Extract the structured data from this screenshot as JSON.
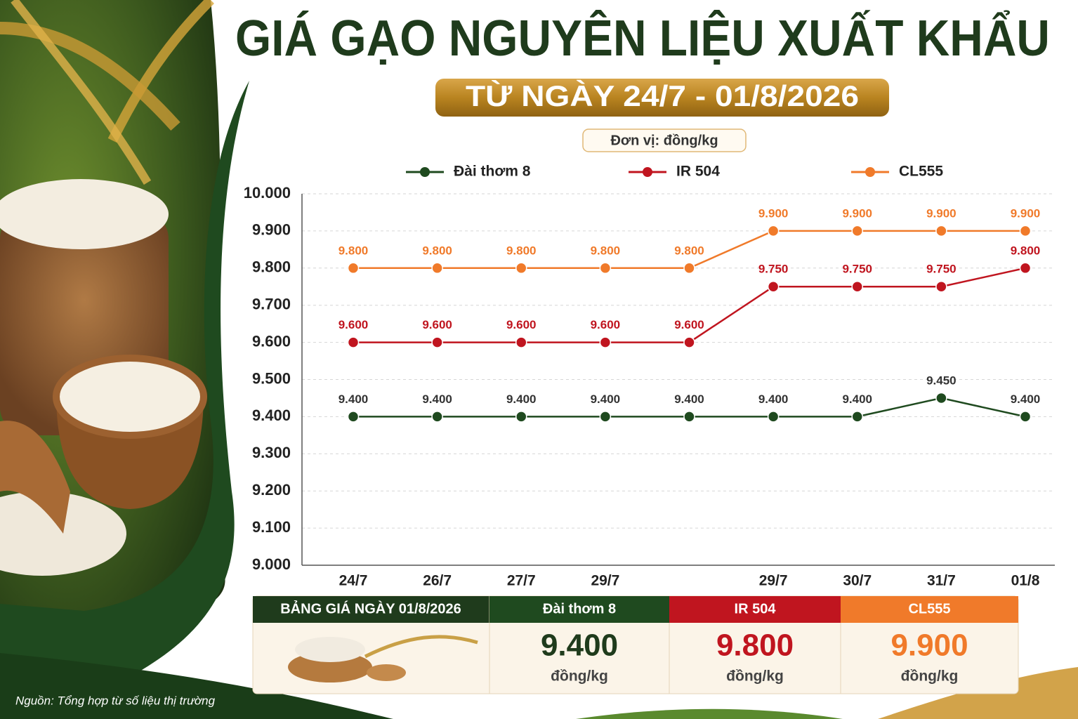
{
  "title": "GIÁ GẠO NGUYÊN LIỆU XUẤT KHẨU",
  "subtitle": "TỪ NGÀY 24/7 - 01/8/2026",
  "unit_note": "Đơn vị: đồng/kg",
  "chart_data": {
    "type": "line",
    "categories": [
      "24/7",
      "26/7",
      "27/7",
      "29/7",
      null,
      "29/7",
      "30/7",
      "31/7",
      "01/8"
    ],
    "series": [
      {
        "name": "Đài thơm 8",
        "color": "#1f4a1f",
        "values": [
          9400,
          9400,
          9400,
          9400,
          9400,
          9400,
          9400,
          9450,
          9400
        ],
        "value_labels": [
          "9.400",
          "9.400",
          "9.400",
          "9.400",
          "9.400",
          "9.400",
          "9.400",
          "9.450",
          "9.400"
        ]
      },
      {
        "name": "IR 504",
        "color": "#c0151f",
        "values": [
          9600,
          9600,
          9600,
          9600,
          9600,
          9750,
          9750,
          9750,
          9800
        ],
        "value_labels": [
          "9.600",
          "9.600",
          "9.600",
          "9.600",
          "9.600",
          "9.750",
          "9.750",
          "9.750",
          "9.800"
        ]
      },
      {
        "name": "CL555",
        "color": "#f07a2a",
        "values": [
          9800,
          9800,
          9800,
          9800,
          9800,
          9900,
          9900,
          9900,
          9900
        ],
        "value_labels": [
          "9.800",
          "9.800",
          "9.800",
          "9.800",
          "9.800",
          "9.900",
          "9.900",
          "9.900",
          "9.900"
        ]
      }
    ],
    "ylim": [
      9000,
      10000
    ],
    "yticks": [
      {
        "value": 9000,
        "label": "9.000"
      },
      {
        "value": 9100,
        "label": "9.100"
      },
      {
        "value": 9200,
        "label": "9.200"
      },
      {
        "value": 9300,
        "label": "9.300"
      },
      {
        "value": 9400,
        "label": "9.400"
      },
      {
        "value": 9500,
        "label": "9.500"
      },
      {
        "value": 9600,
        "label": "9.600"
      },
      {
        "value": 9700,
        "label": "9.700"
      },
      {
        "value": 9800,
        "label": "9.800"
      },
      {
        "value": 9900,
        "label": "9.900"
      },
      {
        "value": 10000,
        "label": "10.000"
      }
    ],
    "grid": true,
    "legend": "top"
  },
  "price_table": {
    "title": "BẢNG GIÁ NGÀY 01/8/2026",
    "unit": "đồng/kg"
  },
  "source": "Nguồn: Tổng hợp từ số liệu thị trường"
}
